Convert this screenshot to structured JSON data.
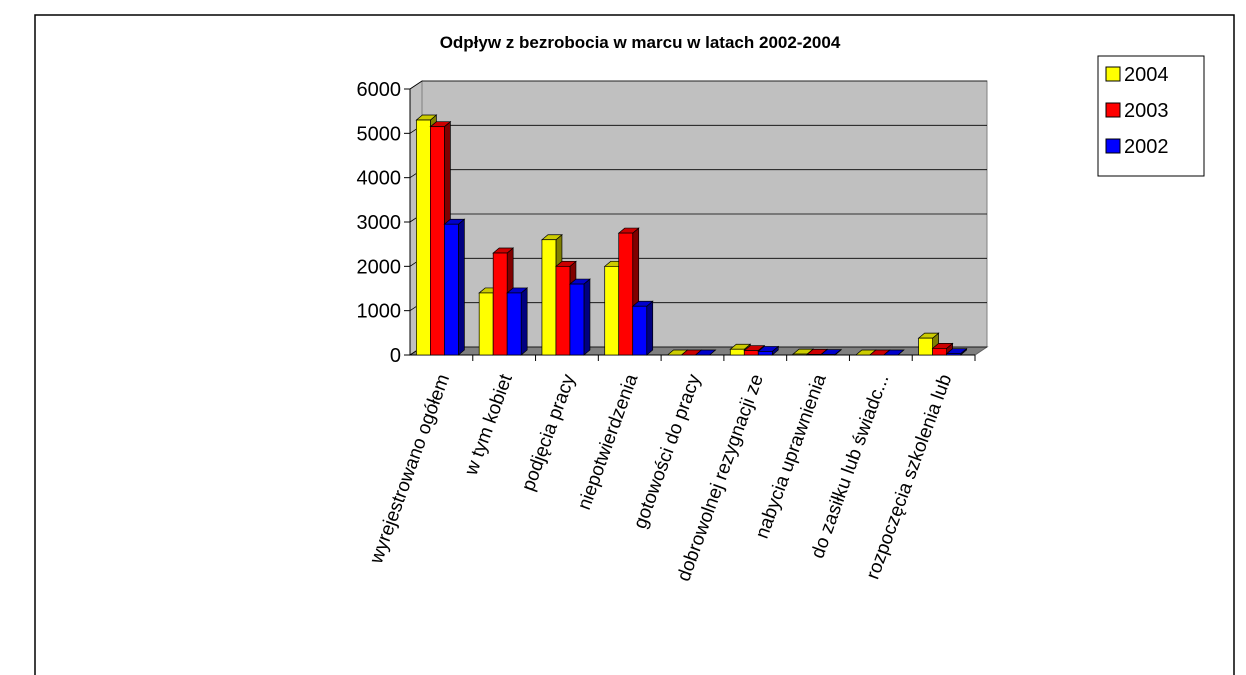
{
  "chart_data": {
    "type": "bar3d",
    "title": "Odpływ z bezrobocia w marcu w latach 2002-2004",
    "categories": [
      "wyrejestrowano ogółem",
      "w tym kobiet",
      "podjęcia pracy",
      "niepotwierdzenia",
      "gotowości do pracy",
      "dobrowolnej rezygnacji ze",
      "nabycia uprawnienia",
      "do zasiłku lub świadc...",
      "rozpoczęcia szkolenia lub"
    ],
    "series": [
      {
        "name": "2004",
        "color": "#ffff00",
        "values": [
          5300,
          1400,
          2600,
          2000,
          0,
          130,
          20,
          0,
          380
        ]
      },
      {
        "name": "2003",
        "color": "#ff0000",
        "values": [
          5150,
          2300,
          2000,
          2750,
          0,
          100,
          15,
          0,
          150
        ]
      },
      {
        "name": "2002",
        "color": "#0000ff",
        "values": [
          2950,
          1400,
          1600,
          1100,
          0,
          80,
          10,
          0,
          30
        ]
      }
    ],
    "ylim": [
      0,
      6000
    ],
    "yticks": [
      0,
      1000,
      2000,
      3000,
      4000,
      5000,
      6000
    ],
    "grid": true,
    "legend": "right"
  }
}
